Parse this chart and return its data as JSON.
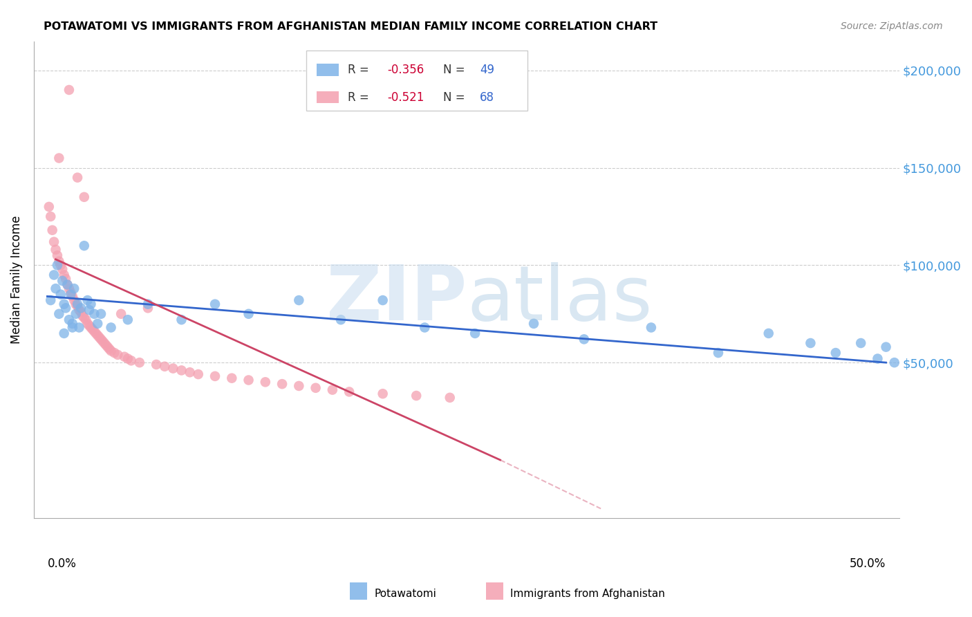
{
  "title": "POTAWATOMI VS IMMIGRANTS FROM AFGHANISTAN MEDIAN FAMILY INCOME CORRELATION CHART",
  "source": "Source: ZipAtlas.com",
  "ylabel": "Median Family Income",
  "yticks": [
    50000,
    100000,
    150000,
    200000
  ],
  "ytick_labels": [
    "$50,000",
    "$100,000",
    "$150,000",
    "$200,000"
  ],
  "xlim": [
    0.0,
    0.5
  ],
  "ylim": [
    0,
    215000
  ],
  "legend1_r": "-0.356",
  "legend1_n": "49",
  "legend2_r": "-0.521",
  "legend2_n": "68",
  "blue_color": "#7EB3E8",
  "pink_color": "#F4A0B0",
  "trendline_blue": "#3366CC",
  "trendline_pink": "#CC4466",
  "potawatomi_x": [
    0.002,
    0.004,
    0.005,
    0.006,
    0.007,
    0.008,
    0.009,
    0.01,
    0.011,
    0.012,
    0.013,
    0.014,
    0.015,
    0.016,
    0.017,
    0.018,
    0.019,
    0.02,
    0.022,
    0.024,
    0.026,
    0.028,
    0.03,
    0.032,
    0.038,
    0.048,
    0.06,
    0.08,
    0.1,
    0.12,
    0.15,
    0.175,
    0.2,
    0.225,
    0.255,
    0.29,
    0.32,
    0.36,
    0.4,
    0.43,
    0.455,
    0.47,
    0.485,
    0.495,
    0.5,
    0.505,
    0.01,
    0.015,
    0.025
  ],
  "potawatomi_y": [
    82000,
    95000,
    88000,
    100000,
    75000,
    85000,
    92000,
    80000,
    78000,
    90000,
    72000,
    85000,
    70000,
    88000,
    75000,
    80000,
    68000,
    78000,
    110000,
    82000,
    80000,
    75000,
    70000,
    75000,
    68000,
    72000,
    80000,
    72000,
    80000,
    75000,
    82000,
    72000,
    82000,
    68000,
    65000,
    70000,
    62000,
    68000,
    55000,
    65000,
    60000,
    55000,
    60000,
    52000,
    58000,
    50000,
    65000,
    68000,
    77000
  ],
  "afghanistan_x": [
    0.001,
    0.002,
    0.003,
    0.004,
    0.005,
    0.006,
    0.007,
    0.008,
    0.009,
    0.01,
    0.011,
    0.012,
    0.013,
    0.014,
    0.015,
    0.016,
    0.017,
    0.018,
    0.019,
    0.02,
    0.021,
    0.022,
    0.023,
    0.024,
    0.025,
    0.026,
    0.027,
    0.028,
    0.029,
    0.03,
    0.031,
    0.032,
    0.033,
    0.034,
    0.035,
    0.036,
    0.037,
    0.038,
    0.04,
    0.042,
    0.044,
    0.046,
    0.048,
    0.05,
    0.055,
    0.06,
    0.065,
    0.07,
    0.075,
    0.08,
    0.085,
    0.09,
    0.1,
    0.11,
    0.12,
    0.13,
    0.14,
    0.15,
    0.16,
    0.17,
    0.18,
    0.2,
    0.22,
    0.24,
    0.013,
    0.007,
    0.018,
    0.022
  ],
  "afghanistan_y": [
    130000,
    125000,
    118000,
    112000,
    108000,
    105000,
    102000,
    100000,
    98000,
    95000,
    93000,
    90000,
    88000,
    86000,
    84000,
    82000,
    80000,
    79000,
    77000,
    76000,
    74000,
    73000,
    72000,
    70000,
    69000,
    68000,
    67000,
    66000,
    65000,
    64000,
    63000,
    62000,
    61000,
    60000,
    59000,
    58000,
    57000,
    56000,
    55000,
    54000,
    75000,
    53000,
    52000,
    51000,
    50000,
    78000,
    49000,
    48000,
    47000,
    46000,
    45000,
    44000,
    43000,
    42000,
    41000,
    40000,
    39000,
    38000,
    37000,
    36000,
    35000,
    34000,
    33000,
    32000,
    190000,
    155000,
    145000,
    135000
  ],
  "blue_legend_label": "Potawatomi",
  "pink_legend_label": "Immigrants from Afghanistan"
}
